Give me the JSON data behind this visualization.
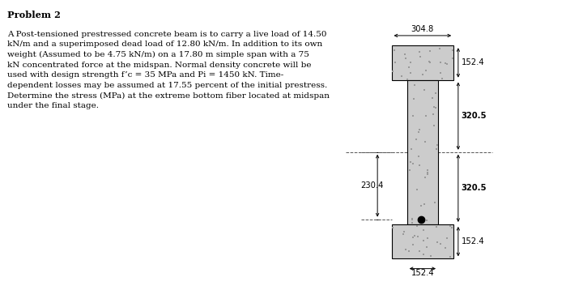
{
  "title": "Problem 2",
  "problem_text": "A Post-tensioned prestressed concrete beam is to carry a live load of 14.50\nkN/m and a superimposed dead load of 12.80 kN/m. In addition to its own\nweight (Assumed to be 4.75 kN/m) on a 17.80 m simple span with a 75\nkN concentrated force at the midspan. Normal density concrete will be\nused with design strength f’c = 35 MPa and Pi = 1450 kN. Time-\ndependent losses may be assumed at 17.55 percent of the initial prestress.\nDetermine the stress (MPa) at the extreme bottom fiber located at midspan\nunder the final stage.",
  "dim_top_width": "304.8",
  "dim_152_4_top_flange": "152.4",
  "dim_320_5_top_web": "320.5",
  "dim_320_5_bot_web": "320.5",
  "dim_152_4_bot_flange": "152.4",
  "dim_bot_width": "152.4",
  "dim_230_4": "230.4",
  "background_color": "#ffffff",
  "beam_fill": "#cccccc",
  "beam_edge": "#000000",
  "dot_color": "#000000",
  "text_color": "#000000",
  "speckle_color": "#999999"
}
